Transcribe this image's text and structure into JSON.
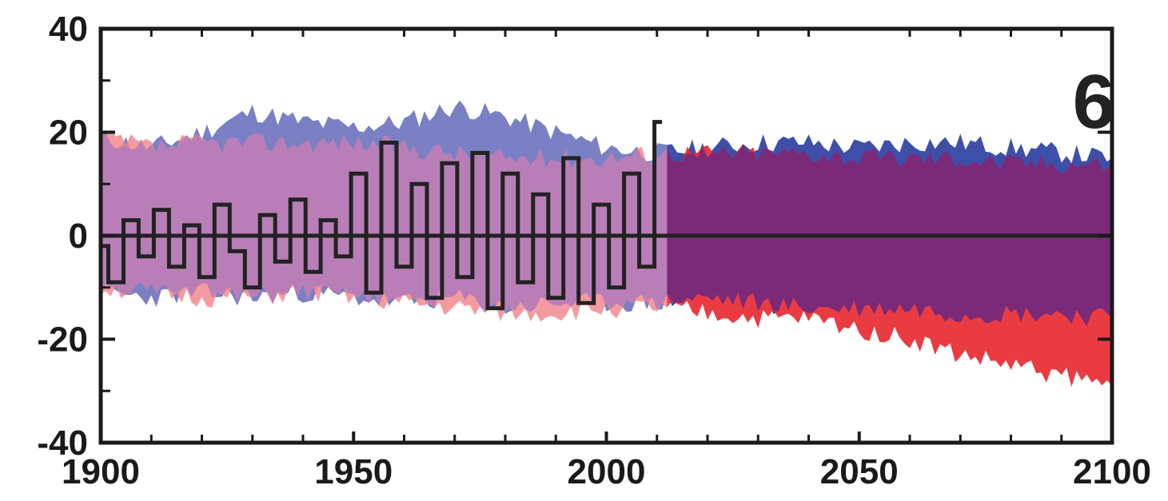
{
  "chart_data": {
    "type": "area",
    "title": "",
    "xlabel": "",
    "ylabel": "",
    "panel_label": "6",
    "xlim": [
      1900,
      2100
    ],
    "ylim": [
      -40,
      40
    ],
    "x_ticks": [
      1900,
      1950,
      2000,
      2050,
      2100
    ],
    "x_tick_labels": [
      "1900",
      "1950",
      "2000",
      "2050",
      "2100"
    ],
    "y_ticks": [
      -40,
      -20,
      0,
      20,
      40
    ],
    "y_tick_labels": [
      "-40",
      "-20",
      "0",
      "20",
      "40"
    ],
    "grid": false,
    "legend": "none",
    "colors": {
      "blue_band": "#3d4fa8",
      "blue_band_historical": "#7b80c4",
      "red_band": "#e8262f",
      "red_band_historical": "#f28a8e",
      "overlap_historical": "#b97eb8",
      "overlap_future": "#7a2a78",
      "observed_line": "#222222",
      "zero_line": "#222222"
    },
    "x": [
      1900,
      1910,
      1920,
      1930,
      1940,
      1950,
      1960,
      1970,
      1980,
      1990,
      2000,
      2010,
      2020,
      2030,
      2040,
      2050,
      2060,
      2070,
      2080,
      2090,
      2100
    ],
    "series": [
      {
        "upper": [
          19,
          17,
          20,
          24,
          22,
          21,
          22,
          25,
          23,
          20,
          17,
          16,
          17,
          18,
          18,
          17,
          18,
          18,
          17,
          16,
          15
        ],
        "lower": [
          -11,
          -12,
          -11,
          -12,
          -11,
          -12,
          -13,
          -12,
          -14,
          -13,
          -13,
          -13,
          -12,
          -13,
          -14,
          -14,
          -14,
          -15,
          -15,
          -15,
          -16
        ]
      },
      {
        "upper": [
          19,
          17,
          18,
          18,
          18,
          18,
          17,
          16,
          15,
          15,
          15,
          16,
          16,
          16,
          16,
          15,
          15,
          15,
          14,
          14,
          14
        ],
        "lower": [
          -10,
          -11,
          -12,
          -12,
          -11,
          -12,
          -13,
          -14,
          -15,
          -15,
          -14,
          -14,
          -15,
          -16,
          -16,
          -18,
          -20,
          -23,
          -25,
          -27,
          -29
        ]
      },
      {
        "x": [
          1900,
          1903,
          1906,
          1909,
          1912,
          1915,
          1918,
          1921,
          1924,
          1927,
          1930,
          1933,
          1936,
          1939,
          1942,
          1945,
          1948,
          1951,
          1954,
          1957,
          1960,
          1963,
          1966,
          1969,
          1972,
          1975,
          1978,
          1981,
          1984,
          1987,
          1990,
          1993,
          1996,
          1999,
          2002,
          2005,
          2008,
          2011
        ],
        "values": [
          -2,
          -9,
          3,
          -4,
          5,
          -6,
          2,
          -8,
          6,
          -3,
          -10,
          4,
          -5,
          7,
          -7,
          3,
          -4,
          12,
          -11,
          18,
          -6,
          10,
          -12,
          14,
          -8,
          16,
          -14,
          12,
          -9,
          8,
          -12,
          15,
          -13,
          6,
          -10,
          12,
          -6,
          22
        ]
      }
    ]
  }
}
